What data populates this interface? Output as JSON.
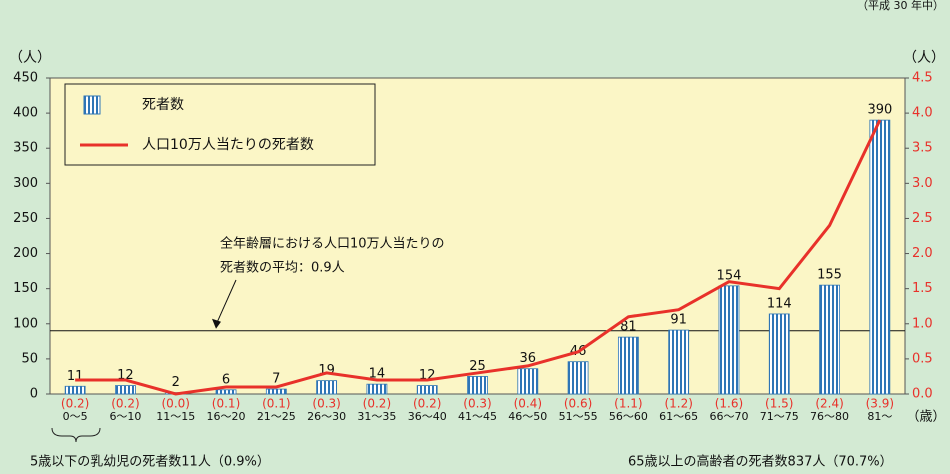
{
  "chart_data": {
    "type": "bar",
    "note": "（平成 30 年中）",
    "y_unit": "（人）",
    "y2_unit": "（人）",
    "x_unit": "（歳）",
    "categories": [
      "0～5",
      "6～10",
      "11～15",
      "16～20",
      "21～25",
      "26～30",
      "31～35",
      "36～40",
      "41～45",
      "46～50",
      "51～55",
      "56～60",
      "61～65",
      "66～70",
      "71～75",
      "76～80",
      "81～"
    ],
    "series": [
      {
        "name": "死者数",
        "type": "bar",
        "color": "#2e75b6",
        "values": [
          11,
          12,
          2,
          6,
          7,
          19,
          14,
          12,
          25,
          36,
          46,
          81,
          91,
          154,
          114,
          155,
          390
        ]
      },
      {
        "name": "人口10万人当たりの死者数",
        "type": "line",
        "axis": "y2",
        "color": "#e8312a",
        "values": [
          0.2,
          0.2,
          0,
          0.1,
          0.1,
          0.3,
          0.2,
          0.2,
          0.3,
          0.4,
          0.6,
          1.1,
          1.2,
          1.6,
          1.5,
          2.4,
          3.9
        ],
        "value_labels": [
          "(0.2)",
          "(0.2)",
          "(0.0)",
          "(0.1)",
          "(0.1)",
          "(0.3)",
          "(0.2)",
          "(0.2)",
          "(0.3)",
          "(0.4)",
          "(0.6)",
          "(1.1)",
          "(1.2)",
          "(1.6)",
          "(1.5)",
          "(2.4)",
          "(3.9)"
        ]
      }
    ],
    "ylim": [
      0,
      450
    ],
    "yticks": [
      0,
      50,
      100,
      150,
      200,
      250,
      300,
      350,
      400,
      450
    ],
    "y2lim": [
      0,
      4.5
    ],
    "y2ticks": [
      {
        "value": 0,
        "label": "0.0"
      },
      0.5,
      {
        "value": 1,
        "label": "1.0"
      },
      1.5,
      {
        "value": 2,
        "label": "2.0"
      },
      2.5,
      {
        "value": 3,
        "label": "3.0"
      },
      3.5,
      {
        "value": 4,
        "label": "4.0"
      },
      4.5
    ],
    "reference_line": {
      "value": 0.9,
      "axis": "y2",
      "label": [
        "全年齢層における人口10万人当たりの",
        "死者数の平均：0.9人"
      ]
    },
    "annotations": [
      "5歳以下の乳幼児の死者数11人（0.9%）",
      "65歳以上の高齢者の死者数837人（70.7%）"
    ]
  }
}
